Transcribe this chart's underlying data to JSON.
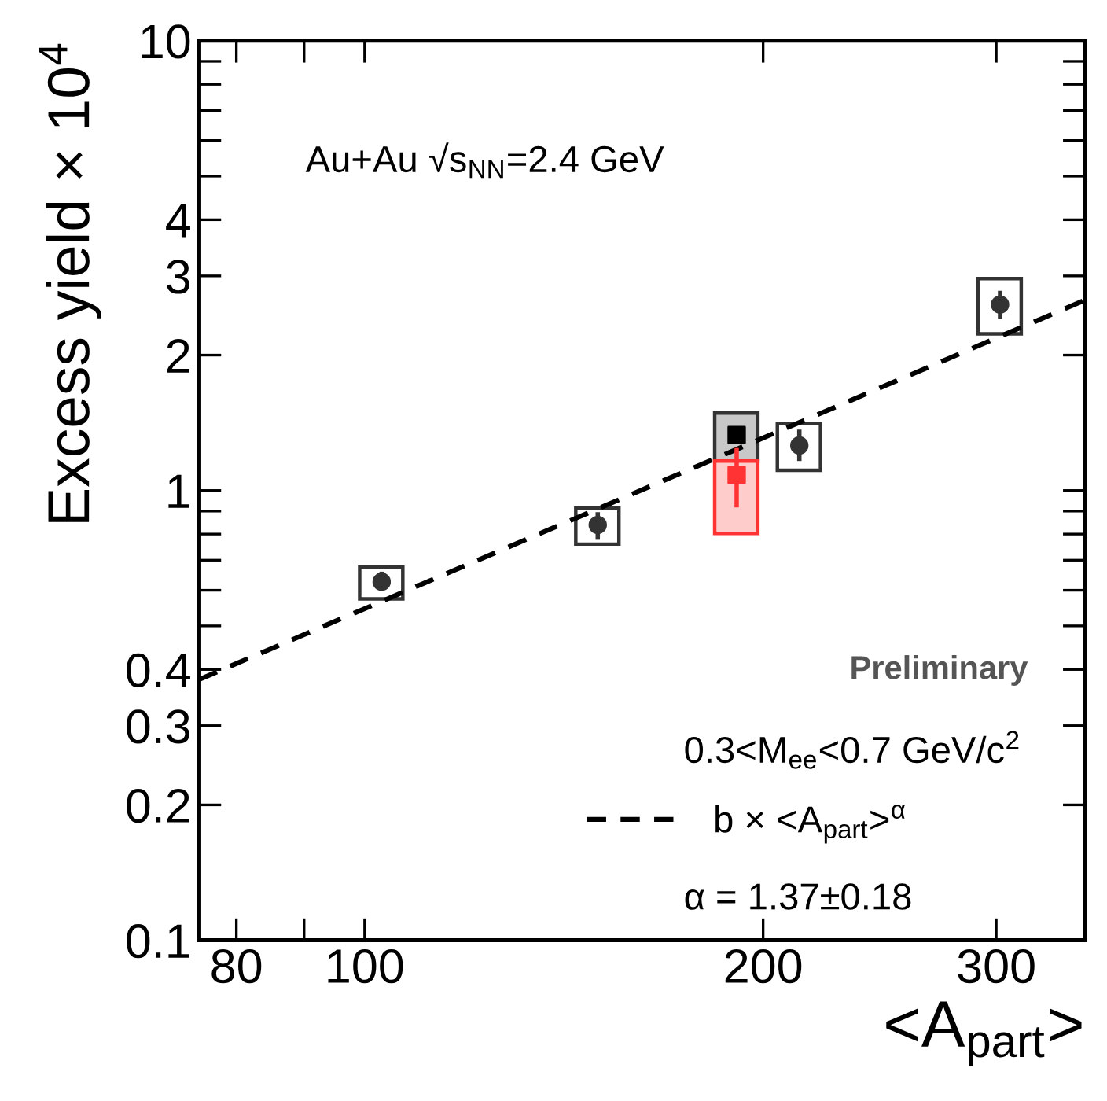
{
  "chart_data": {
    "type": "scatter",
    "xlabel": "<A$_{part}$>",
    "ylabel": "Excess yield × 10$^{4}$",
    "log": "xy",
    "xlim": [
      75,
      350
    ],
    "ylim": [
      0.1,
      10
    ],
    "xticks": [
      80,
      {
        "value": 90,
        "label": null
      },
      100,
      200,
      300
    ],
    "yticks": [
      0.1,
      0.2,
      0.3,
      0.4,
      {
        "value": 0.5,
        "label": null
      },
      {
        "value": 0.6,
        "label": null
      },
      {
        "value": 0.7,
        "label": null
      },
      {
        "value": 0.8,
        "label": null
      },
      {
        "value": 0.9,
        "label": null
      },
      1,
      2,
      3,
      4,
      {
        "value": 5,
        "label": null
      },
      {
        "value": 6,
        "label": null
      },
      {
        "value": 7,
        "label": null
      },
      {
        "value": 8,
        "label": null
      },
      {
        "value": 9,
        "label": null
      },
      10
    ],
    "grid": false,
    "legend": "bottom right",
    "series": [
      {
        "type": "bar",
        "color": "#333333",
        "x": [
          103,
          150,
          191,
          213,
          302
        ],
        "base": [
          0.574,
          0.76,
          1.163,
          1.109,
          2.23
        ],
        "values": [
          0.101,
          0.153,
          0.324,
          0.301,
          0.73
        ],
        "colors": [
          "#ffffff",
          "#ffffff",
          "#c8c8c8",
          "#ffffff",
          "#ffffff"
        ]
      },
      {
        "type": "bar",
        "color": "#ff3333",
        "x": [
          191
        ],
        "base": [
          0.803
        ],
        "values": [
          0.36
        ],
        "colors": [
          "#ffcccc"
        ]
      },
      {
        "type": "line",
        "name": "b × <A$_{part}$>$^{α}$",
        "color": "#000000",
        "line_style": "dashed",
        "marker": "none",
        "x": [
          75,
          350
        ],
        "values": [
          0.38,
          2.65
        ]
      },
      {
        "color": "#333333",
        "marker": "circle",
        "x": [
          103,
          150,
          213,
          302
        ],
        "values": [
          0.627,
          0.838,
          1.259,
          2.59
        ],
        "errors": [
          [
            0.6,
            0.66
          ],
          [
            0.777,
            0.895
          ],
          [
            1.163,
            1.366
          ],
          [
            2.41,
            2.78
          ]
        ]
      },
      {
        "color": "#000000",
        "marker": "square",
        "x": [
          191
        ],
        "values": [
          1.328
        ],
        "errors": [
          [
            1.29,
            1.37
          ]
        ]
      },
      {
        "color": "#ff3333",
        "marker": "square",
        "x": [
          191
        ],
        "values": [
          1.084
        ],
        "errors": [
          [
            0.917,
            1.243
          ]
        ]
      }
    ],
    "annotations": [
      "Au+Au √s$_{NN}$=2.4 GeV",
      "0.3<M$_{ee}$<0.7 GeV/c$^{2}$",
      "α = 1.37±0.18",
      "Preliminary"
    ]
  }
}
